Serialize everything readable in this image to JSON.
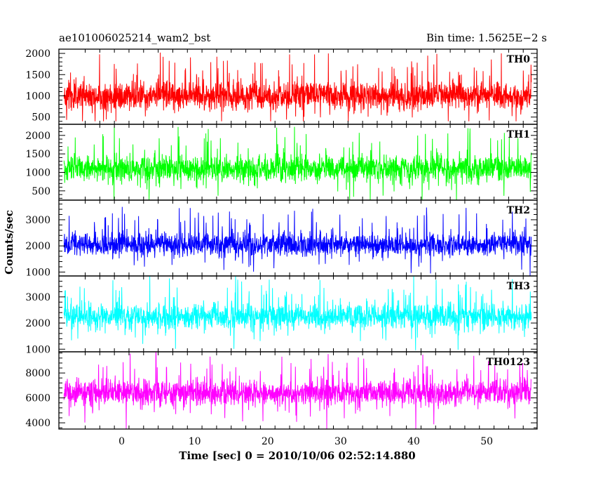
{
  "header": {
    "left": "ae101006025214_wam2_bst",
    "right": "Bin time: 1.5625E−2 s"
  },
  "axes": {
    "xlabel": "Time [sec] 0 = 2010/10/06 02:52:14.880",
    "ylabel": "Counts/sec"
  },
  "chart_data": {
    "type": "line",
    "shared_x": {
      "range": [
        -8.6,
        56.9
      ],
      "data_range": [
        -7.9,
        56.1
      ],
      "ticks": [
        0,
        10,
        20,
        30,
        40,
        50
      ],
      "tick_labels": [
        "0",
        "10",
        "20",
        "30",
        "40",
        "50"
      ]
    },
    "panels": [
      {
        "name": "TH0",
        "color": "#ff0000",
        "ylim": [
          330,
          2100
        ],
        "ticks": [
          500,
          1000,
          1500,
          2000
        ],
        "tick_labels": [
          "500",
          "1000",
          "1500",
          "2000"
        ],
        "mean": 1000,
        "spread": 310,
        "low": 400,
        "high": 2100
      },
      {
        "name": "TH1",
        "color": "#00ff00",
        "ylim": [
          250,
          2300
        ],
        "ticks": [
          500,
          1000,
          1500,
          2000
        ],
        "tick_labels": [
          "500",
          "1000",
          "1500",
          "2000"
        ],
        "mean": 1100,
        "spread": 330,
        "low": 250,
        "high": 2300
      },
      {
        "name": "TH2",
        "color": "#0000ff",
        "ylim": [
          850,
          3750
        ],
        "ticks": [
          1000,
          2000,
          3000
        ],
        "tick_labels": [
          "1000",
          "2000",
          "3000"
        ],
        "mean": 2050,
        "spread": 430,
        "low": 850,
        "high": 3750
      },
      {
        "name": "TH3",
        "color": "#00ffff",
        "ylim": [
          900,
          3800
        ],
        "ticks": [
          1000,
          2000,
          3000
        ],
        "tick_labels": [
          "1000",
          "2000",
          "3000"
        ],
        "mean": 2250,
        "spread": 460,
        "low": 900,
        "high": 3800
      },
      {
        "name": "TH0123",
        "color": "#ff00ff",
        "ylim": [
          3500,
          9700
        ],
        "ticks": [
          4000,
          6000,
          8000
        ],
        "tick_labels": [
          "4000",
          "6000",
          "8000"
        ],
        "mean": 6400,
        "spread": 950,
        "low": 3500,
        "high": 9700
      }
    ]
  }
}
